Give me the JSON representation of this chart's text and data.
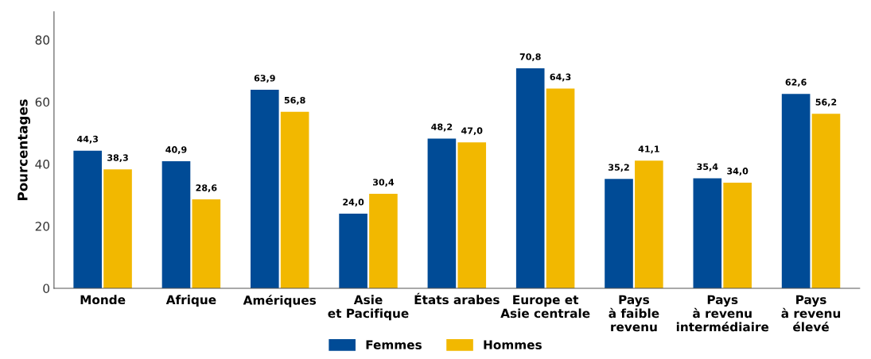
{
  "chart_data": {
    "type": "bar",
    "ylabel": "Pourcentages",
    "categories": [
      "Monde",
      "Afrique",
      "Amériques",
      "Asie\net Pacifique",
      "États arabes",
      "Europe et\nAsie centrale",
      "Pays\nà faible\nrevenu",
      "Pays\nà revenu\nintermédiaire",
      "Pays\nà revenu\nélevé"
    ],
    "series": [
      {
        "name": "Femmes",
        "color": "#004b96",
        "values": [
          44.3,
          40.9,
          63.9,
          24.0,
          48.2,
          70.8,
          35.2,
          35.4,
          62.6
        ],
        "value_labels": [
          "44,3",
          "40,9",
          "63,9",
          "24,0",
          "48,2",
          "70,8",
          "35,2",
          "35,4",
          "62,6"
        ]
      },
      {
        "name": "Hommes",
        "color": "#f2b800",
        "values": [
          38.3,
          28.6,
          56.8,
          30.4,
          47.0,
          64.3,
          41.1,
          34.0,
          56.2
        ],
        "value_labels": [
          "38,3",
          "28,6",
          "56,8",
          "30,4",
          "47,0",
          "64,3",
          "41,1",
          "34,0",
          "56,2"
        ]
      }
    ],
    "ylim": [
      0,
      89
    ],
    "yticks": [
      0,
      20,
      40,
      60,
      80
    ],
    "grid": false,
    "legend": "bottom"
  }
}
